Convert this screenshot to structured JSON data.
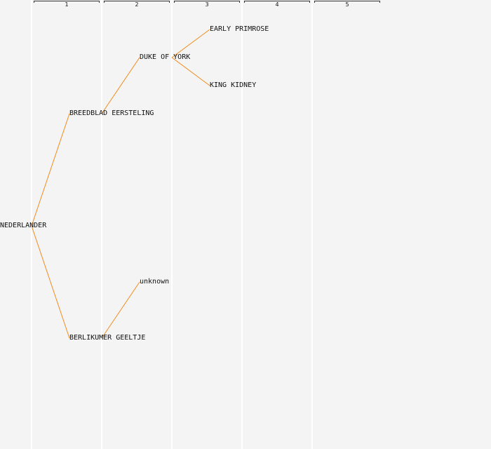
{
  "generations": [
    "1",
    "2",
    "3",
    "4",
    "5"
  ],
  "edge_color": "#f08c1e",
  "nodes": {
    "root": "NEDERLANDER",
    "p1": "BREEDBLAD EERSTELING",
    "p2": "BERLIKUMER GEELTJE",
    "gp1": "DUKE OF YORK",
    "gp2": "unknown",
    "ggp1": "EARLY PRIMROSE",
    "ggp2": "KING KIDNEY"
  }
}
